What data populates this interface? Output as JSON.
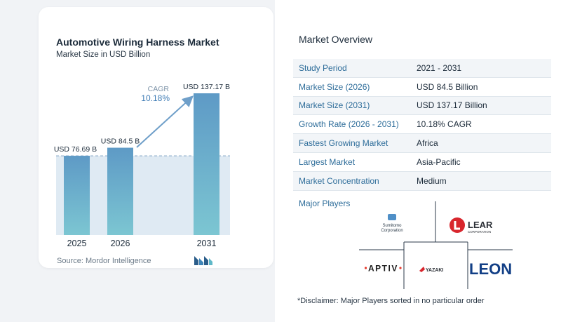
{
  "chart_data": {
    "type": "bar",
    "title": "Automotive Wiring Harness Market",
    "subtitle": "Market Size in USD Billion",
    "categories": [
      "2025",
      "2026",
      "2031"
    ],
    "values": [
      76.69,
      84.5,
      137.17
    ],
    "value_labels": [
      "USD 76.69 B",
      "USD 84.5 B",
      "USD 137.17 B"
    ],
    "ylim": [
      0,
      137.17
    ],
    "cagr_label": "CAGR",
    "cagr_value": "10.18%",
    "source": "Source:  Mordor Intelligence",
    "colors": {
      "bar_top": "#5e9ac6",
      "bar_bottom": "#7cc6d2",
      "band": "#dfeaf3",
      "arrow": "#6f9fc9",
      "dashed": "#7fa2c4"
    }
  },
  "overview": {
    "title": "Market Overview",
    "rows": [
      {
        "label": "Study Period",
        "value": "2021 - 2031"
      },
      {
        "label": "Market Size (2026)",
        "value": "USD 84.5 Billion"
      },
      {
        "label": "Market Size (2031)",
        "value": "USD 137.17 Billion"
      },
      {
        "label": "Growth Rate (2026 - 2031)",
        "value": "10.18% CAGR"
      },
      {
        "label": "Fastest Growing Market",
        "value": "Africa"
      },
      {
        "label": "Largest Market",
        "value": "Asia-Pacific"
      },
      {
        "label": "Market Concentration",
        "value": "Medium"
      }
    ]
  },
  "players": {
    "title": "Major Players",
    "sumitomo_line1": "Sumitomo",
    "sumitomo_line2": "Corporation",
    "lear": "LEAR",
    "lear_sub": "CORPORATION",
    "aptiv": "APTIV",
    "yazaki": "YAZAKI",
    "leoni": "LEONI"
  },
  "disclaimer": "*Disclaimer: Major Players sorted in no particular order"
}
